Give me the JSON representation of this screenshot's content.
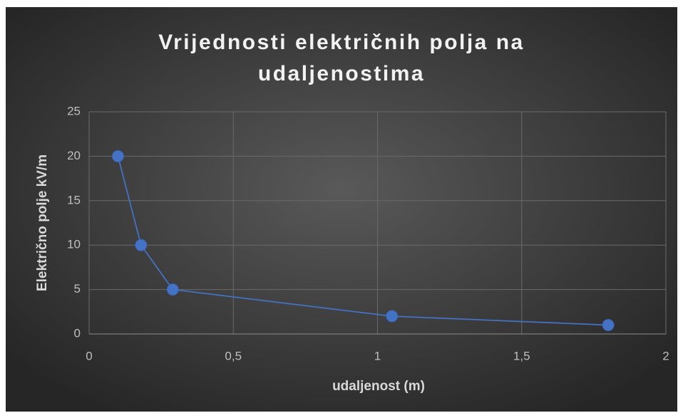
{
  "chart_data": {
    "type": "scatter",
    "title": "Vrijednosti električnih polja na udaljenostima",
    "x_label": "udaljenost (m)",
    "y_label": "Električno polje kV/m",
    "series": [
      {
        "color": "#4472c4",
        "x": [
          0.1,
          0.18,
          0.29,
          1.05,
          1.8
        ],
        "values": [
          20,
          10,
          5,
          2,
          1
        ]
      }
    ],
    "xlim": [
      0,
      2
    ],
    "xticks": [
      0,
      {
        "value": 0.5,
        "label": "0,5"
      },
      1,
      {
        "value": 1.5,
        "label": "1,5"
      },
      2
    ],
    "ylim": [
      0,
      25
    ],
    "yticks": [
      0,
      5,
      10,
      15,
      20,
      25
    ],
    "grid": true,
    "lines": true
  }
}
